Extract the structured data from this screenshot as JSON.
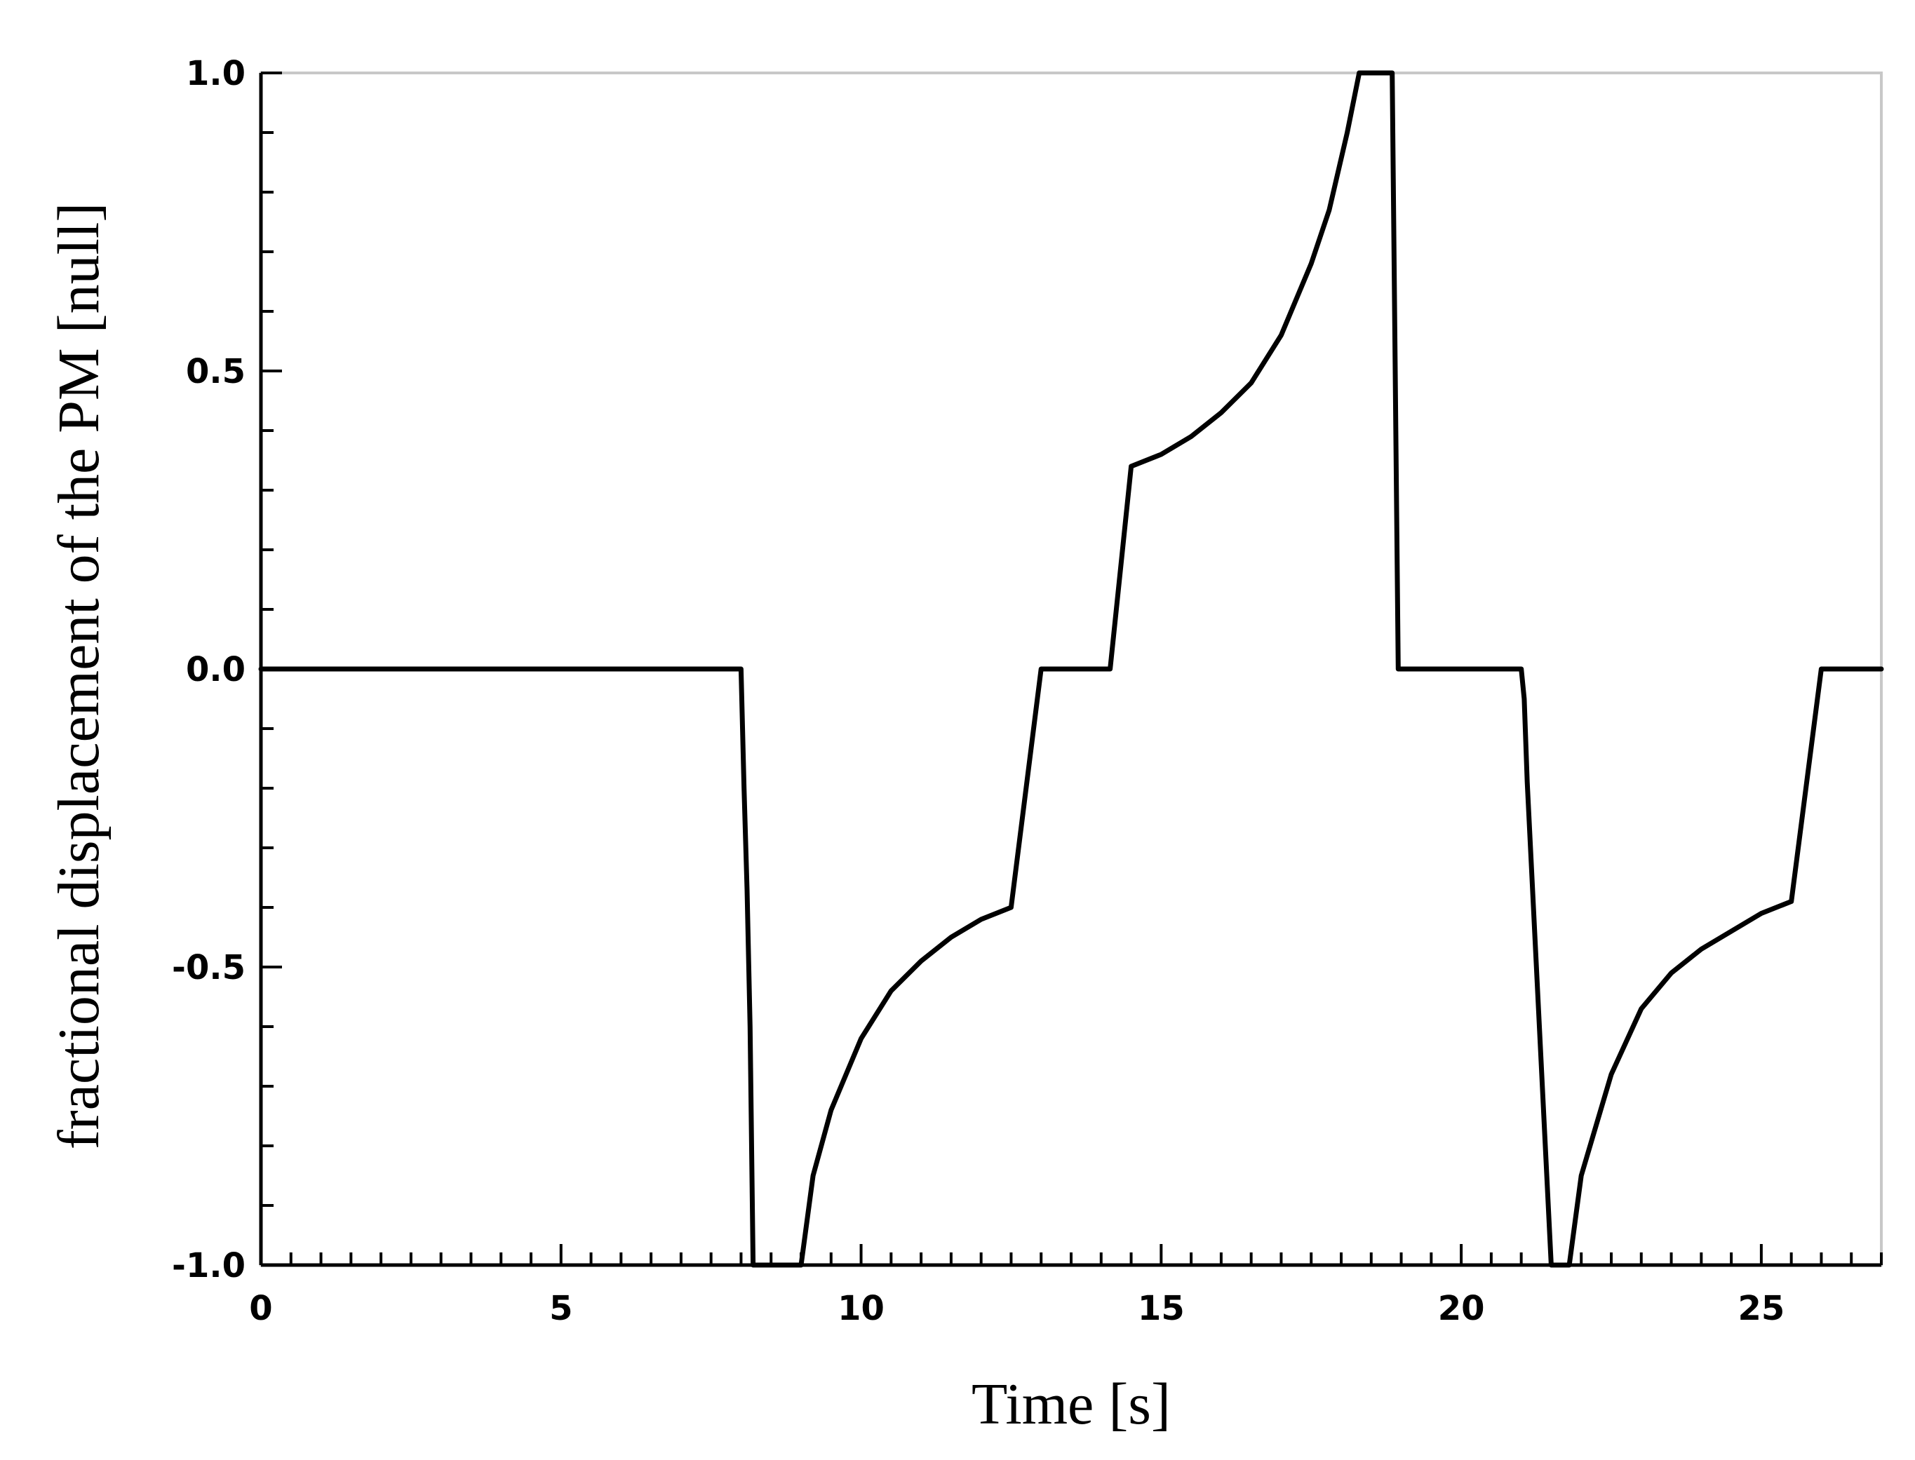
{
  "chart_data": {
    "type": "line",
    "title": "",
    "xlabel": "Time [s]",
    "ylabel": "fractional displacement of the PM [null]",
    "xlim": [
      0,
      27
    ],
    "ylim": [
      -1.0,
      1.0
    ],
    "x_ticks": [
      0,
      5,
      10,
      15,
      20,
      25
    ],
    "x_tick_labels": [
      "0",
      "5",
      "10",
      "15",
      "20",
      "25"
    ],
    "x_minor_step": 0.5,
    "y_ticks": [
      -1.0,
      -0.5,
      0.0,
      0.5,
      1.0
    ],
    "y_tick_labels": [
      "-1.0",
      "-0.5",
      "0.0",
      "0.5",
      "1.0"
    ],
    "y_minor_step": 0.1,
    "grid": false,
    "legend": "none",
    "series": [
      {
        "color": "#000000",
        "x": [
          0,
          8.0,
          8.05,
          8.1,
          8.15,
          8.2,
          9.0,
          9.2,
          9.5,
          10.0,
          10.5,
          11.0,
          11.5,
          12.0,
          12.5,
          13.0,
          14.15,
          14.5,
          15.0,
          15.5,
          16.0,
          16.5,
          17.0,
          17.5,
          17.8,
          18.1,
          18.3,
          18.85,
          18.95,
          21.0,
          21.05,
          21.1,
          21.5,
          21.8,
          22.0,
          22.5,
          23.0,
          23.5,
          24.0,
          24.5,
          25.0,
          25.5,
          26.0,
          27.0
        ],
        "y": [
          0.0,
          0.0,
          -0.2,
          -0.37,
          -0.6,
          -1.0,
          -1.0,
          -0.85,
          -0.74,
          -0.62,
          -0.54,
          -0.49,
          -0.45,
          -0.42,
          -0.4,
          0.0,
          0.0,
          0.34,
          0.36,
          0.39,
          0.43,
          0.48,
          0.56,
          0.68,
          0.77,
          0.9,
          1.0,
          1.0,
          0.0,
          0.0,
          -0.05,
          -0.19,
          -1.0,
          -1.0,
          -0.85,
          -0.68,
          -0.57,
          -0.51,
          -0.47,
          -0.44,
          -0.41,
          -0.39,
          0.0,
          0.0
        ]
      }
    ]
  }
}
